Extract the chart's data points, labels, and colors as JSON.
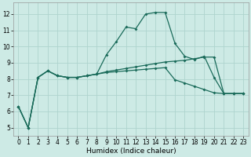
{
  "xlabel": "Humidex (Indice chaleur)",
  "xlim": [
    -0.5,
    23.5
  ],
  "ylim": [
    4.5,
    12.7
  ],
  "yticks": [
    5,
    6,
    7,
    8,
    9,
    10,
    11,
    12
  ],
  "xticks": [
    0,
    1,
    2,
    3,
    4,
    5,
    6,
    7,
    8,
    9,
    10,
    11,
    12,
    13,
    14,
    15,
    16,
    17,
    18,
    19,
    20,
    21,
    22,
    23
  ],
  "bg_color": "#cdeae5",
  "grid_color": "#aed4ce",
  "line_color": "#1a6b5a",
  "line1_y": [
    6.3,
    5.0,
    8.1,
    8.5,
    8.2,
    8.1,
    8.1,
    8.2,
    8.3,
    9.5,
    10.3,
    11.2,
    11.1,
    12.0,
    12.1,
    12.1,
    10.2,
    9.4,
    9.2,
    9.4,
    8.1,
    7.1,
    7.1,
    7.1
  ],
  "line2_y": [
    6.3,
    5.0,
    8.1,
    8.5,
    8.2,
    8.1,
    8.1,
    8.2,
    8.3,
    8.45,
    8.55,
    8.65,
    8.75,
    8.85,
    8.95,
    9.05,
    9.1,
    9.15,
    9.25,
    9.35,
    9.35,
    7.1,
    7.1,
    7.1
  ],
  "line3_y": [
    6.3,
    5.0,
    8.1,
    8.5,
    8.2,
    8.1,
    8.1,
    8.2,
    8.3,
    8.4,
    8.45,
    8.5,
    8.55,
    8.6,
    8.65,
    8.7,
    7.95,
    7.75,
    7.55,
    7.35,
    7.15,
    7.1,
    7.1,
    7.1
  ],
  "tick_fontsize": 5.5,
  "xlabel_fontsize": 6.5,
  "marker_size": 2.0,
  "line_width": 0.9
}
